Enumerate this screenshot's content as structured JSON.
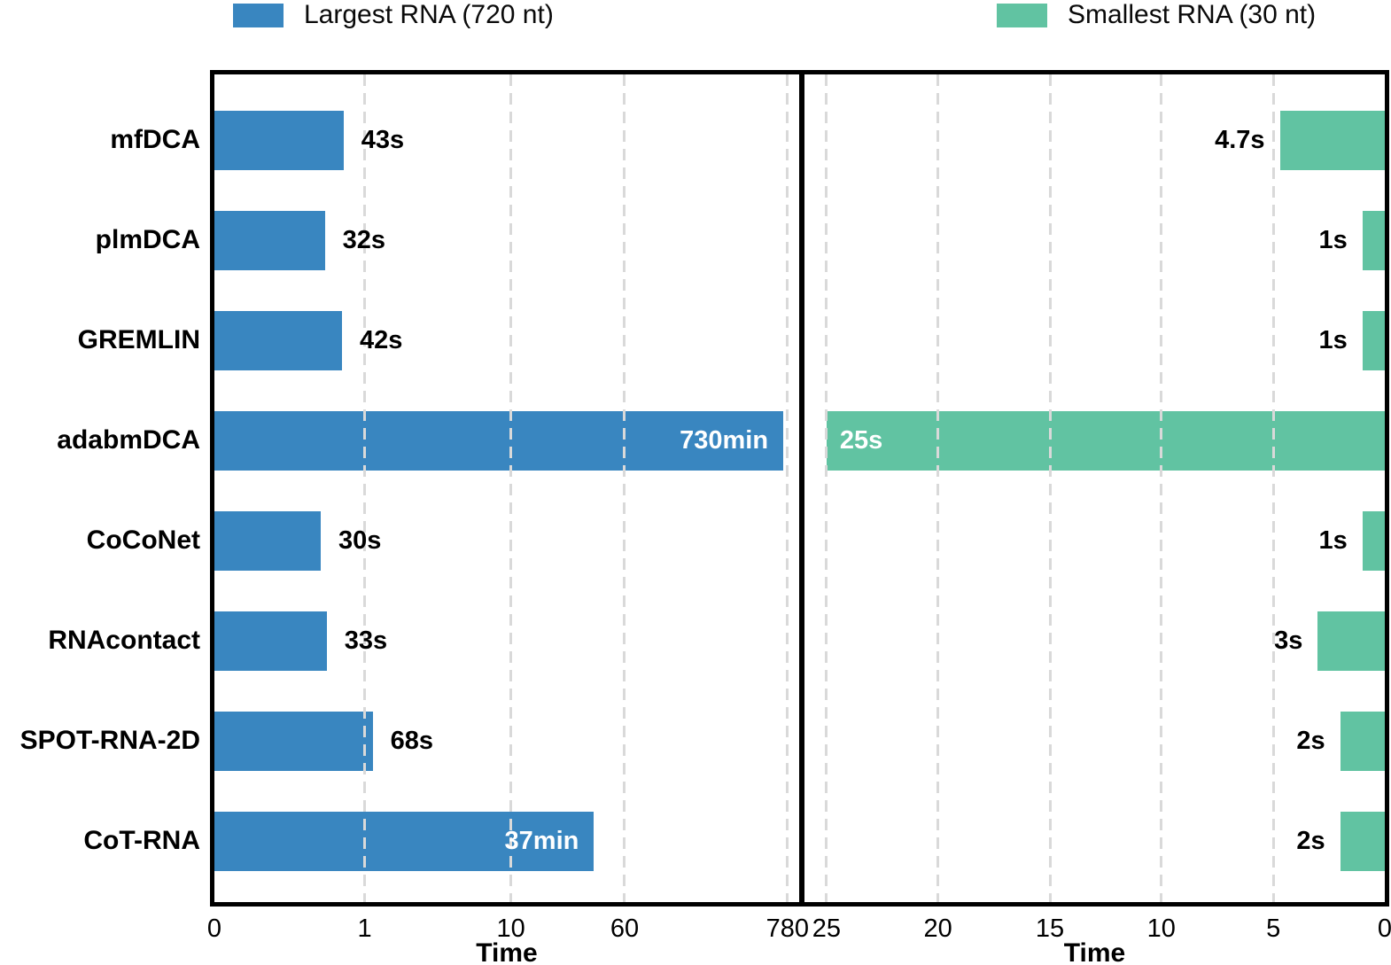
{
  "legend": {
    "items": [
      {
        "label": "Largest RNA (720 nt)",
        "color": "#3986C0"
      },
      {
        "label": "Smallest RNA (30 nt)",
        "color": "#61C3A2"
      }
    ]
  },
  "chart_data": {
    "type": "bar",
    "orientation": "horizontal",
    "title": "",
    "categories": [
      "mfDCA",
      "plmDCA",
      "GREMLIN",
      "adabmDCA",
      "CoCoNet",
      "RNAcontact",
      "SPOT-RNA-2D",
      "CoT-RNA"
    ],
    "series": [
      {
        "name": "Largest RNA (720 nt)",
        "color": "#3986C0",
        "panel": "left",
        "unit": "minutes",
        "scale": "log",
        "direction": "left-to-right",
        "xlabel": "Time",
        "ticks": [
          {
            "label": "0",
            "value": 0,
            "frac": 0.0
          },
          {
            "label": "1",
            "value": 1,
            "frac": 0.257
          },
          {
            "label": "10",
            "value": 10,
            "frac": 0.507
          },
          {
            "label": "60",
            "value": 60,
            "frac": 0.7015
          },
          {
            "label": "780",
            "value": 780,
            "frac": 0.98
          }
        ],
        "log_anchor_frac": 0.257,
        "log_decade_frac": 0.25,
        "values_minutes": [
          0.7167,
          0.5333,
          0.7,
          730,
          0.5,
          0.55,
          1.1333,
          37
        ],
        "labels": [
          "43s",
          "32s",
          "42s",
          "730min",
          "30s",
          "33s",
          "68s",
          "37min"
        ],
        "label_inside": [
          false,
          false,
          false,
          true,
          false,
          false,
          false,
          true
        ]
      },
      {
        "name": "Smallest RNA (30 nt)",
        "color": "#61C3A2",
        "panel": "right",
        "unit": "seconds",
        "scale": "linear",
        "direction": "right-to-left",
        "xlabel": "Time",
        "ticks": [
          {
            "label": "25",
            "value": 25,
            "frac": 0.962
          },
          {
            "label": "20",
            "value": 20,
            "frac": 0.77
          },
          {
            "label": "15",
            "value": 15,
            "frac": 0.577
          },
          {
            "label": "10",
            "value": 10,
            "frac": 0.385
          },
          {
            "label": "5",
            "value": 5,
            "frac": 0.192
          },
          {
            "label": "0",
            "value": 0,
            "frac": 0.0
          }
        ],
        "linear_max_value": 25,
        "linear_max_frac": 0.962,
        "values_seconds": [
          4.7,
          1,
          1,
          25,
          1,
          3,
          2,
          2
        ],
        "labels": [
          "4.7s",
          "1s",
          "1s",
          "25s",
          "1s",
          "3s",
          "2s",
          "2s"
        ],
        "label_inside": [
          false,
          false,
          false,
          true,
          false,
          false,
          false,
          false
        ]
      }
    ]
  }
}
